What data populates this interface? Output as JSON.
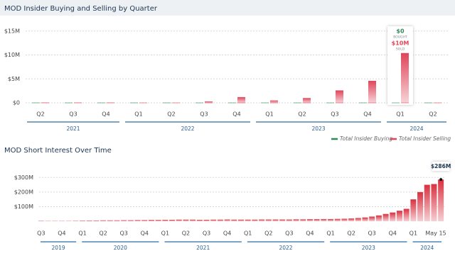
{
  "chart_data": [
    {
      "type": "bar",
      "title": "MOD Insider Buying and Selling by Quarter",
      "categories": [
        "Q2",
        "Q3",
        "Q4",
        "Q1",
        "Q2",
        "Q3",
        "Q4",
        "Q1",
        "Q2",
        "Q3",
        "Q4",
        "Q1",
        "Q2"
      ],
      "groups": [
        "2021",
        "2022",
        "2023",
        "2024"
      ],
      "series": [
        {
          "name": "Total Insider Buying",
          "color": "#2e8b57",
          "values": [
            0,
            0,
            0,
            0,
            0,
            0,
            0,
            0,
            0,
            0,
            0,
            0,
            0
          ],
          "value_labels": [
            null,
            null,
            null,
            null,
            null,
            null,
            null,
            null,
            null,
            null,
            null,
            "$0",
            null
          ],
          "label_caption": "BOUGHT"
        },
        {
          "name": "Total Insider Selling",
          "color": "#e0455a",
          "values": [
            50000,
            60000,
            40000,
            0,
            0,
            300000,
            1200000,
            500000,
            1000000,
            2600000,
            4600000,
            10400000,
            0
          ],
          "value_labels": [
            null,
            null,
            null,
            null,
            null,
            null,
            null,
            null,
            null,
            null,
            null,
            "$10M",
            null
          ],
          "label_caption": "SOLD"
        }
      ],
      "ylim": [
        0,
        16000000
      ],
      "yticks": [
        {
          "value": 0,
          "label": "$0"
        },
        {
          "value": 5000000,
          "label": "$5M"
        },
        {
          "value": 10000000,
          "label": "$10M"
        },
        {
          "value": 15000000,
          "label": "$15M"
        }
      ],
      "grid": true,
      "legend": "bottom-right"
    },
    {
      "type": "bar",
      "title": "MOD Short Interest Over Time",
      "categories": [
        "Q3",
        null,
        null,
        "Q4",
        null,
        null,
        "Q1",
        null,
        null,
        "Q2",
        null,
        null,
        "Q3",
        null,
        null,
        "Q4",
        null,
        null,
        "Q1",
        null,
        null,
        "Q2",
        null,
        null,
        "Q3",
        null,
        null,
        "Q4",
        null,
        null,
        "Q1",
        null,
        null,
        "Q2",
        null,
        null,
        "Q3",
        null,
        null,
        "Q4",
        null,
        null,
        "Q1",
        null,
        null,
        "Q2",
        null,
        null,
        "Q3",
        null,
        null,
        "Q4",
        null,
        null,
        "Q1",
        null,
        null,
        null,
        "May 15"
      ],
      "groups": [
        "2019",
        "2020",
        "2021",
        "2022",
        "2023",
        "2024"
      ],
      "values": [
        3000000,
        2000000,
        2000000,
        2000000,
        2000000,
        3000000,
        4000000,
        5000000,
        5000000,
        6000000,
        6000000,
        6000000,
        7000000,
        7000000,
        8000000,
        8000000,
        9000000,
        9000000,
        10000000,
        10000000,
        11000000,
        11000000,
        11000000,
        10000000,
        10000000,
        11000000,
        11000000,
        12000000,
        11000000,
        11000000,
        11000000,
        11000000,
        12000000,
        12000000,
        12000000,
        12000000,
        12000000,
        13000000,
        13000000,
        14000000,
        14000000,
        15000000,
        15000000,
        16000000,
        17000000,
        19000000,
        22000000,
        26000000,
        32000000,
        40000000,
        50000000,
        60000000,
        72000000,
        85000000,
        150000000,
        200000000,
        250000000,
        255000000,
        286000000
      ],
      "value_labels": [
        null,
        null,
        null,
        null,
        null,
        null,
        null,
        null,
        null,
        null,
        null,
        null,
        null,
        null,
        null,
        null,
        null,
        null,
        null,
        null,
        null,
        null,
        null,
        null,
        null,
        null,
        null,
        null,
        null,
        null,
        null,
        null,
        null,
        null,
        null,
        null,
        null,
        null,
        null,
        null,
        null,
        null,
        null,
        null,
        null,
        null,
        null,
        null,
        null,
        null,
        null,
        null,
        null,
        null,
        null,
        null,
        null,
        null,
        "$286M"
      ],
      "color": "#d9303f",
      "ylim": [
        0,
        350000000
      ],
      "yticks": [
        {
          "value": 100000000,
          "label": "$100M"
        },
        {
          "value": 200000000,
          "label": "$200M"
        },
        {
          "value": 300000000,
          "label": "$300M"
        }
      ],
      "grid": true
    }
  ]
}
